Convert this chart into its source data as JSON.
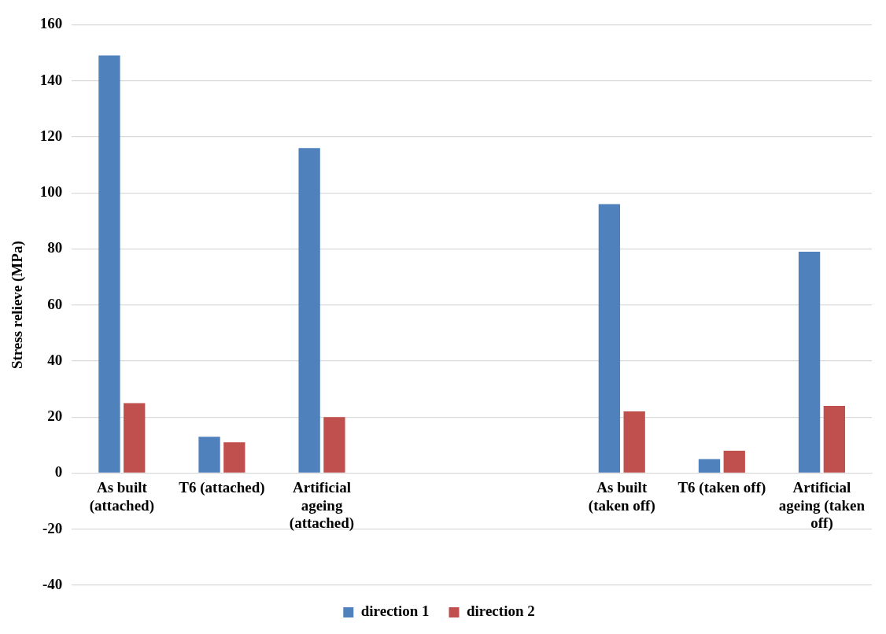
{
  "chart_data": {
    "type": "bar",
    "ylabel": "Stress relieve (MPa)",
    "categories": [
      "As built (attached)",
      "T6 (attached)",
      "Artificial ageing (attached)",
      null,
      null,
      "As built (taken off)",
      "T6 (taken off)",
      "Artificial ageing (taken off)"
    ],
    "series": [
      {
        "name": "direction 1",
        "color": "#4f81bd",
        "values": [
          149,
          13,
          116,
          null,
          null,
          96,
          5,
          79
        ]
      },
      {
        "name": "direction 2",
        "color": "#c0504d",
        "values": [
          25,
          11,
          20,
          null,
          null,
          22,
          8,
          24
        ]
      }
    ],
    "ylim": [
      -40,
      160
    ],
    "yticks": [
      -40,
      -20,
      0,
      20,
      40,
      60,
      80,
      100,
      120,
      140,
      160
    ],
    "grid": "y",
    "legend": "bottom"
  }
}
